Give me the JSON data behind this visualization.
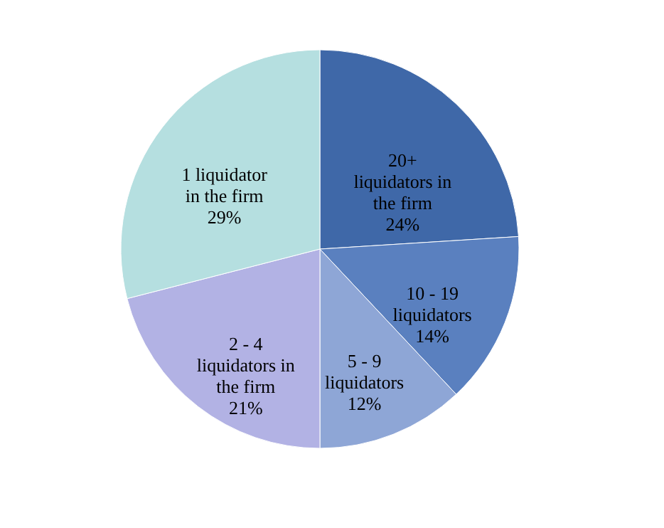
{
  "chart_data": {
    "type": "pie",
    "categories": [
      "20+ liquidators in the firm",
      "10 - 19 liquidators",
      "5 - 9 liquidators",
      "2 - 4 liquidators in the firm",
      "1 liquidator in the firm"
    ],
    "values": [
      24,
      14,
      12,
      21,
      29
    ],
    "colors": [
      "#3f68a8",
      "#5a80bf",
      "#8ea6d6",
      "#b2b2e4",
      "#b5dfe0"
    ],
    "value_labels": [
      "24%",
      "14%",
      "12%",
      "21%",
      "29%"
    ],
    "legend": false
  }
}
